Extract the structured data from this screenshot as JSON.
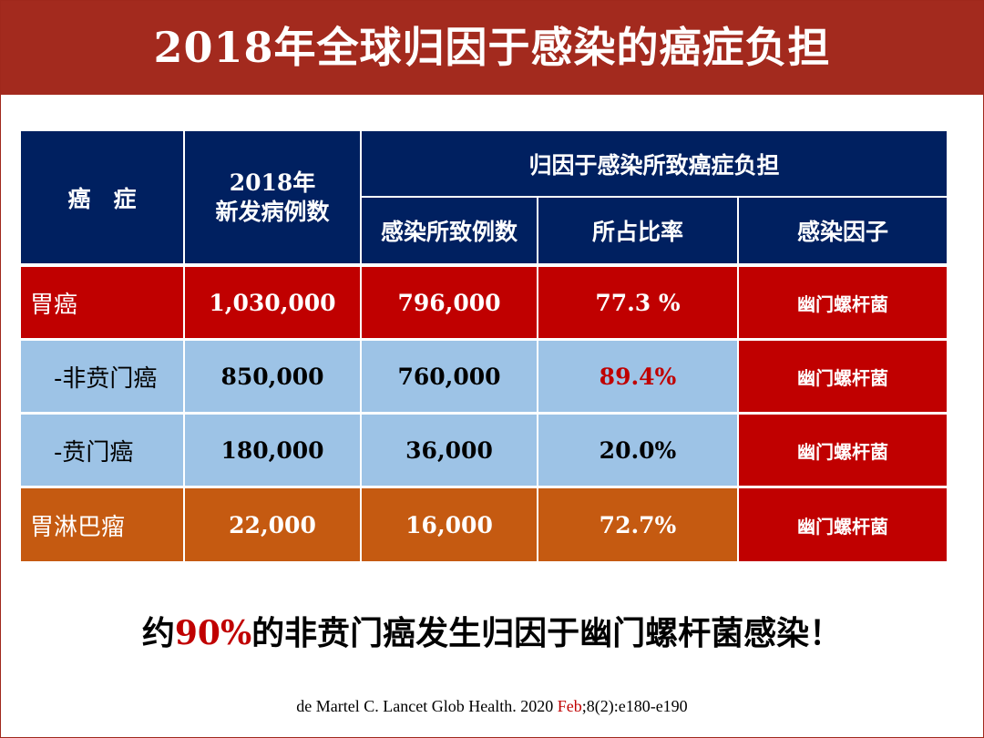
{
  "title": "2018年全球归因于感染的癌症负担",
  "table": {
    "headers": {
      "cancer": "癌　症",
      "new_cases_year": "2018年",
      "new_cases": "新发病例数",
      "group": "归因于感染所致癌症负担",
      "infection_cases": "感染所致例数",
      "proportion": "所占比率",
      "factor": "感染因子"
    },
    "rows": [
      {
        "cancer": "胃癌",
        "new_cases": "1,030,000",
        "infection_cases": "796,000",
        "proportion": "77.3 %",
        "factor": "幽门螺杆菌"
      },
      {
        "cancer": "-非贲门癌",
        "new_cases": "850,000",
        "infection_cases": "760,000",
        "proportion": "89.4%",
        "factor": "幽门螺杆菌"
      },
      {
        "cancer": "-贲门癌",
        "new_cases": "180,000",
        "infection_cases": "36,000",
        "proportion": "20.0%",
        "factor": "幽门螺杆菌"
      },
      {
        "cancer": "胃淋巴瘤",
        "new_cases": "22,000",
        "infection_cases": "16,000",
        "proportion": "72.7%",
        "factor": "幽门螺杆菌"
      }
    ]
  },
  "conclusion": {
    "prefix": "约",
    "percent": "90%",
    "suffix": "的非贲门癌发生归因于幽门螺杆菌感染！"
  },
  "citation": {
    "before": "de Martel C. Lancet Glob Health. 2020 ",
    "month": "Feb",
    "after": ";8(2):e180-e190"
  },
  "colors": {
    "title_bar": "#a32a1e",
    "header": "#002060",
    "red_row": "#c00000",
    "blue_row": "#9dc3e6",
    "orange_row": "#c55a11",
    "highlight": "#c00000"
  }
}
